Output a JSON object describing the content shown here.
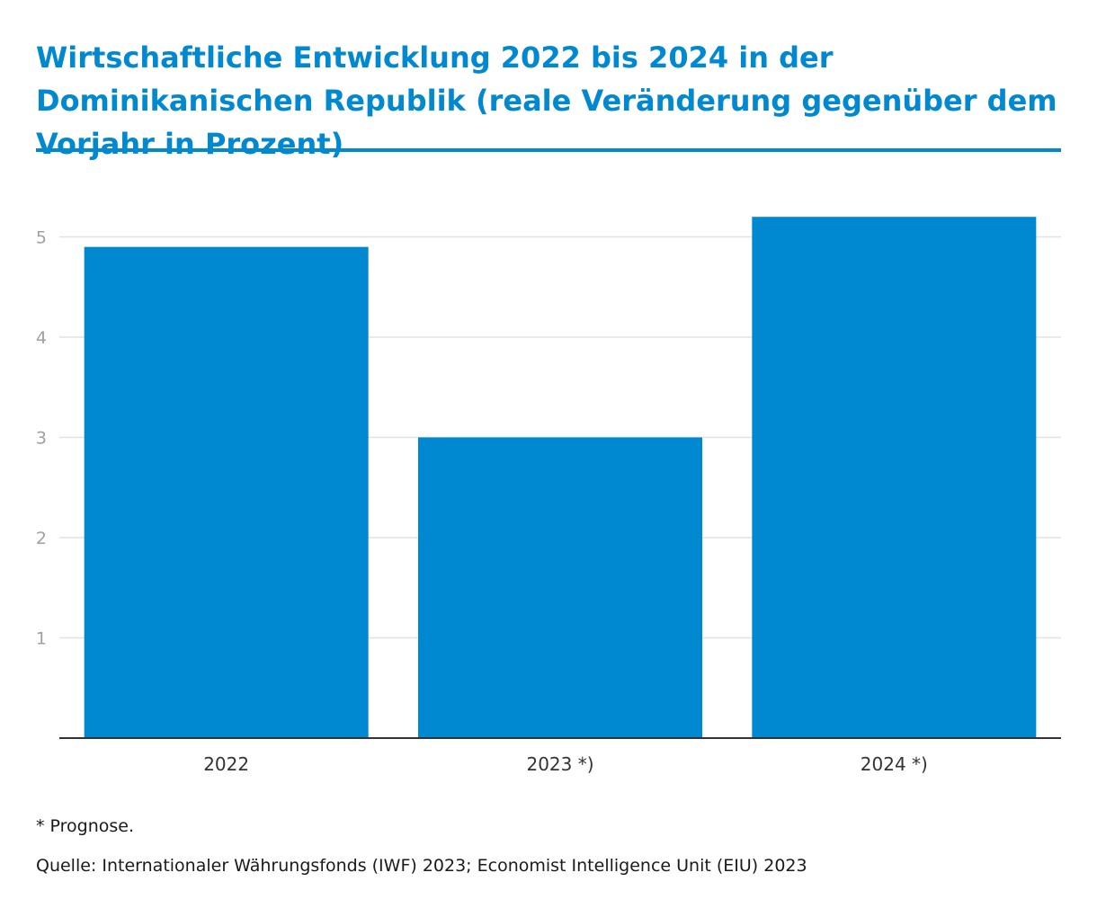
{
  "chart_data": {
    "type": "bar",
    "title": "Wirtschaftliche Entwicklung 2022 bis 2024 in der Dominikanischen Republik (reale Veränderung gegenüber dem Vorjahr in Prozent)",
    "categories": [
      "2022",
      "2023 *)",
      "2024 *)"
    ],
    "values": [
      4.9,
      3.0,
      5.2
    ],
    "xlabel": "",
    "ylabel": "",
    "ylim": [
      0,
      5.5
    ],
    "yticks": [
      1,
      2,
      3,
      4,
      5
    ],
    "grid": true,
    "bar_color": "#0089d0",
    "grid_color": "#e2e2e2",
    "tick_label_color": "#a0a0a0"
  },
  "footnote": "* Prognose.",
  "source": "Quelle: Internationaler Währungsfonds (IWF) 2023; Economist Intelligence Unit (EIU) 2023"
}
